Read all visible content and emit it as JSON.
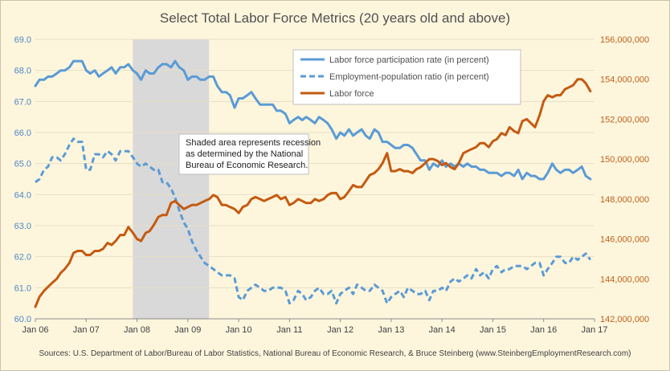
{
  "chart_data": {
    "type": "line",
    "title": "Select Total Labor Force Metrics (20 years old and above)",
    "source": "Sources: U.S. Department of Labor/Bureau of Labor Statistics, National Bureau of Economic Research,  & Bruce Steinberg (www.SteinbergEmploymentResearch.com)",
    "annotation": "Shaded area represents recession as determined by the National Bureau of Economic Research.",
    "annotation_lines": [
      "Shaded area represents recession",
      "as determined by the National",
      "Bureau of Economic Research."
    ],
    "recession": {
      "start": "Dec 2007",
      "end": "Jun 2009",
      "start_x": 2007.917,
      "end_x": 2009.417
    },
    "x_axis": {
      "range": [
        2006,
        2017
      ],
      "tick_labels": [
        "Jan 06",
        "Jan 07",
        "Jan 08",
        "Jan 09",
        "Jan 10",
        "Jan 11",
        "Jan 12",
        "Jan 13",
        "Jan 14",
        "Jan 15",
        "Jan 16",
        "Jan 17"
      ],
      "tick_values": [
        2006,
        2007,
        2008,
        2009,
        2010,
        2011,
        2012,
        2013,
        2014,
        2015,
        2016,
        2017
      ]
    },
    "y_left": {
      "range": [
        60.0,
        69.0
      ],
      "tick_labels": [
        "60.0",
        "61.0",
        "62.0",
        "63.0",
        "64.0",
        "65.0",
        "66.0",
        "67.0",
        "68.0",
        "69.0"
      ],
      "tick_values": [
        60,
        61,
        62,
        63,
        64,
        65,
        66,
        67,
        68,
        69
      ]
    },
    "y_right": {
      "range": [
        142000000,
        156000000
      ],
      "tick_labels": [
        "142,000,000",
        "144,000,000",
        "146,000,000",
        "148,000,000",
        "150,000,000",
        "152,000,000",
        "154,000,000",
        "156,000,000"
      ],
      "tick_values": [
        142000000,
        144000000,
        146000000,
        148000000,
        150000000,
        152000000,
        154000000,
        156000000
      ]
    },
    "legend_position": "top-right",
    "colors": {
      "participation": "#5b9bd5",
      "employment": "#5b9bd5",
      "labor_force": "#c55a11",
      "recession": "#d9d9d9"
    },
    "series": [
      {
        "name": "Labor force participation rate (in percent)",
        "axis": "left",
        "style": "solid",
        "x": [
          2006.0,
          2006.08,
          2006.17,
          2006.25,
          2006.33,
          2006.42,
          2006.5,
          2006.58,
          2006.67,
          2006.75,
          2006.83,
          2006.92,
          2007.0,
          2007.08,
          2007.17,
          2007.25,
          2007.33,
          2007.42,
          2007.5,
          2007.58,
          2007.67,
          2007.75,
          2007.83,
          2007.92,
          2008.0,
          2008.08,
          2008.17,
          2008.25,
          2008.33,
          2008.42,
          2008.5,
          2008.58,
          2008.67,
          2008.75,
          2008.83,
          2008.92,
          2009.0,
          2009.08,
          2009.17,
          2009.25,
          2009.33,
          2009.42,
          2009.5,
          2009.58,
          2009.67,
          2009.75,
          2009.83,
          2009.92,
          2010.0,
          2010.08,
          2010.17,
          2010.25,
          2010.33,
          2010.42,
          2010.5,
          2010.58,
          2010.67,
          2010.75,
          2010.83,
          2010.92,
          2011.0,
          2011.08,
          2011.17,
          2011.25,
          2011.33,
          2011.42,
          2011.5,
          2011.58,
          2011.67,
          2011.75,
          2011.83,
          2011.92,
          2012.0,
          2012.08,
          2012.17,
          2012.25,
          2012.33,
          2012.42,
          2012.5,
          2012.58,
          2012.67,
          2012.75,
          2012.83,
          2012.92,
          2013.0,
          2013.08,
          2013.17,
          2013.25,
          2013.33,
          2013.42,
          2013.5,
          2013.58,
          2013.67,
          2013.75,
          2013.83,
          2013.92,
          2014.0,
          2014.08,
          2014.17,
          2014.25,
          2014.33,
          2014.42,
          2014.5,
          2014.58,
          2014.67,
          2014.75,
          2014.83,
          2014.92,
          2015.0,
          2015.08,
          2015.17,
          2015.25,
          2015.33,
          2015.42,
          2015.5,
          2015.58,
          2015.67,
          2015.75,
          2015.83,
          2015.92,
          2016.0,
          2016.08,
          2016.17,
          2016.25,
          2016.33,
          2016.42,
          2016.5,
          2016.58,
          2016.67,
          2016.75,
          2016.83,
          2016.92
        ],
        "y": [
          67.5,
          67.7,
          67.7,
          67.8,
          67.8,
          67.9,
          68.0,
          68.0,
          68.1,
          68.3,
          68.3,
          68.3,
          68.0,
          67.9,
          68.0,
          67.8,
          67.9,
          68.0,
          68.1,
          67.9,
          68.1,
          68.1,
          68.2,
          68.0,
          67.9,
          67.7,
          68.0,
          67.9,
          67.9,
          68.1,
          68.2,
          68.2,
          68.1,
          68.3,
          68.1,
          68.0,
          67.7,
          67.8,
          67.8,
          67.7,
          67.7,
          67.8,
          67.8,
          67.5,
          67.3,
          67.3,
          67.2,
          66.8,
          67.1,
          67.1,
          67.2,
          67.3,
          67.1,
          66.9,
          66.9,
          66.9,
          66.9,
          66.7,
          66.7,
          66.6,
          66.3,
          66.4,
          66.5,
          66.4,
          66.5,
          66.4,
          66.3,
          66.5,
          66.4,
          66.3,
          66.1,
          65.8,
          66.0,
          65.9,
          66.1,
          65.9,
          66.0,
          66.1,
          65.9,
          65.8,
          66.1,
          66.0,
          65.7,
          65.7,
          65.6,
          65.5,
          65.5,
          65.6,
          65.6,
          65.5,
          65.3,
          65.1,
          65.1,
          64.8,
          65.0,
          64.9,
          65.1,
          64.9,
          65.0,
          64.9,
          65.0,
          64.9,
          65.0,
          64.9,
          64.9,
          64.8,
          64.8,
          64.7,
          64.7,
          64.7,
          64.6,
          64.7,
          64.7,
          64.6,
          64.8,
          64.5,
          64.7,
          64.6,
          64.6,
          64.5,
          64.5,
          64.7,
          65.0,
          64.8,
          64.7,
          64.8,
          64.8,
          64.7,
          64.8,
          64.9,
          64.6,
          64.5
        ]
      },
      {
        "name": "Employment-population ratio (in percent)",
        "axis": "left",
        "style": "dashed",
        "x": [
          2006.0,
          2006.08,
          2006.17,
          2006.25,
          2006.33,
          2006.42,
          2006.5,
          2006.58,
          2006.67,
          2006.75,
          2006.83,
          2006.92,
          2007.0,
          2007.08,
          2007.17,
          2007.25,
          2007.33,
          2007.42,
          2007.5,
          2007.58,
          2007.67,
          2007.75,
          2007.83,
          2007.92,
          2008.0,
          2008.08,
          2008.17,
          2008.25,
          2008.33,
          2008.42,
          2008.5,
          2008.58,
          2008.67,
          2008.75,
          2008.83,
          2008.92,
          2009.0,
          2009.08,
          2009.17,
          2009.25,
          2009.33,
          2009.42,
          2009.5,
          2009.58,
          2009.67,
          2009.75,
          2009.83,
          2009.92,
          2010.0,
          2010.08,
          2010.17,
          2010.25,
          2010.33,
          2010.42,
          2010.5,
          2010.58,
          2010.67,
          2010.75,
          2010.83,
          2010.92,
          2011.0,
          2011.08,
          2011.17,
          2011.25,
          2011.33,
          2011.42,
          2011.5,
          2011.58,
          2011.67,
          2011.75,
          2011.83,
          2011.92,
          2012.0,
          2012.08,
          2012.17,
          2012.25,
          2012.33,
          2012.42,
          2012.5,
          2012.58,
          2012.67,
          2012.75,
          2012.83,
          2012.92,
          2013.0,
          2013.08,
          2013.17,
          2013.25,
          2013.33,
          2013.42,
          2013.5,
          2013.58,
          2013.67,
          2013.75,
          2013.83,
          2013.92,
          2014.0,
          2014.08,
          2014.17,
          2014.25,
          2014.33,
          2014.42,
          2014.5,
          2014.58,
          2014.67,
          2014.75,
          2014.83,
          2014.92,
          2015.0,
          2015.08,
          2015.17,
          2015.25,
          2015.33,
          2015.42,
          2015.5,
          2015.58,
          2015.67,
          2015.75,
          2015.83,
          2015.92,
          2016.0,
          2016.08,
          2016.17,
          2016.25,
          2016.33,
          2016.42,
          2016.5,
          2016.58,
          2016.67,
          2016.75,
          2016.83,
          2016.92
        ],
        "y": [
          64.4,
          64.5,
          64.8,
          64.9,
          65.2,
          65.2,
          65.1,
          65.3,
          65.6,
          65.8,
          65.7,
          65.7,
          64.8,
          64.8,
          65.3,
          65.3,
          65.2,
          65.4,
          65.3,
          65.1,
          65.4,
          65.4,
          65.4,
          65.2,
          65.0,
          64.9,
          65.0,
          64.9,
          64.8,
          64.8,
          64.4,
          64.4,
          64.2,
          63.9,
          63.5,
          63.1,
          62.9,
          62.5,
          62.2,
          62.0,
          61.8,
          61.7,
          61.6,
          61.5,
          61.4,
          61.4,
          61.4,
          61.3,
          60.7,
          60.6,
          60.9,
          61.0,
          61.1,
          61.0,
          60.9,
          60.9,
          61.0,
          61.0,
          61.0,
          60.9,
          60.5,
          60.6,
          60.9,
          60.8,
          60.6,
          60.7,
          60.9,
          61.0,
          60.8,
          60.8,
          60.9,
          60.5,
          60.8,
          60.9,
          61.0,
          60.8,
          61.1,
          61.0,
          60.9,
          60.9,
          61.1,
          61.0,
          60.9,
          60.5,
          60.7,
          60.8,
          60.9,
          60.7,
          61.0,
          60.9,
          60.8,
          60.8,
          60.9,
          60.6,
          60.9,
          60.9,
          61.0,
          60.9,
          61.2,
          61.3,
          61.2,
          61.3,
          61.4,
          61.3,
          61.6,
          61.4,
          61.5,
          61.3,
          61.6,
          61.7,
          61.5,
          61.6,
          61.6,
          61.7,
          61.7,
          61.7,
          61.6,
          61.7,
          61.8,
          61.8,
          61.4,
          61.6,
          61.8,
          62.0,
          62.0,
          61.8,
          61.8,
          62.0,
          61.9,
          62.0,
          62.1,
          61.9
        ]
      },
      {
        "name": "Labor force",
        "axis": "right",
        "style": "solid",
        "x": [
          2006.0,
          2006.08,
          2006.17,
          2006.25,
          2006.33,
          2006.42,
          2006.5,
          2006.58,
          2006.67,
          2006.75,
          2006.83,
          2006.92,
          2007.0,
          2007.08,
          2007.17,
          2007.25,
          2007.33,
          2007.42,
          2007.5,
          2007.58,
          2007.67,
          2007.75,
          2007.83,
          2007.92,
          2008.0,
          2008.08,
          2008.17,
          2008.25,
          2008.33,
          2008.42,
          2008.5,
          2008.58,
          2008.67,
          2008.75,
          2008.83,
          2008.92,
          2009.0,
          2009.08,
          2009.17,
          2009.25,
          2009.33,
          2009.42,
          2009.5,
          2009.58,
          2009.67,
          2009.75,
          2009.83,
          2009.92,
          2010.0,
          2010.08,
          2010.17,
          2010.25,
          2010.33,
          2010.42,
          2010.5,
          2010.58,
          2010.67,
          2010.75,
          2010.83,
          2010.92,
          2011.0,
          2011.08,
          2011.17,
          2011.25,
          2011.33,
          2011.42,
          2011.5,
          2011.58,
          2011.67,
          2011.75,
          2011.83,
          2011.92,
          2012.0,
          2012.08,
          2012.17,
          2012.25,
          2012.33,
          2012.42,
          2012.5,
          2012.58,
          2012.67,
          2012.75,
          2012.83,
          2012.92,
          2013.0,
          2013.08,
          2013.17,
          2013.25,
          2013.33,
          2013.42,
          2013.5,
          2013.58,
          2013.67,
          2013.75,
          2013.83,
          2013.92,
          2014.0,
          2014.08,
          2014.17,
          2014.25,
          2014.33,
          2014.42,
          2014.5,
          2014.58,
          2014.67,
          2014.75,
          2014.83,
          2014.92,
          2015.0,
          2015.08,
          2015.17,
          2015.25,
          2015.33,
          2015.42,
          2015.5,
          2015.58,
          2015.67,
          2015.75,
          2015.83,
          2015.92,
          2016.0,
          2016.08,
          2016.17,
          2016.25,
          2016.33,
          2016.42,
          2016.5,
          2016.58,
          2016.67,
          2016.75,
          2016.83,
          2016.92
        ],
        "y": [
          142600000,
          143100000,
          143400000,
          143600000,
          143800000,
          144000000,
          144300000,
          144500000,
          144800000,
          145300000,
          145400000,
          145400000,
          145200000,
          145200000,
          145400000,
          145400000,
          145500000,
          145800000,
          145700000,
          145900000,
          146200000,
          146200000,
          146600000,
          146300000,
          146000000,
          145900000,
          146300000,
          146400000,
          146700000,
          147100000,
          147200000,
          147200000,
          147800000,
          147900000,
          147700000,
          147500000,
          147600000,
          147700000,
          147700000,
          147800000,
          147900000,
          148000000,
          148200000,
          148100000,
          147700000,
          147700000,
          147600000,
          147500000,
          147300000,
          147600000,
          147700000,
          148000000,
          148100000,
          148000000,
          147900000,
          148000000,
          148100000,
          148200000,
          148000000,
          148100000,
          147700000,
          147800000,
          148000000,
          147900000,
          147800000,
          147800000,
          148000000,
          147900000,
          148000000,
          148200000,
          148300000,
          148300000,
          148000000,
          148100000,
          148400000,
          148700000,
          148600000,
          148600000,
          148900000,
          149200000,
          149300000,
          149500000,
          149800000,
          150300000,
          149400000,
          149400000,
          149500000,
          149400000,
          149400000,
          149300000,
          149500000,
          149600000,
          149800000,
          150000000,
          150000000,
          149900000,
          149700000,
          149800000,
          149600000,
          149500000,
          149800000,
          150300000,
          150400000,
          150500000,
          150600000,
          150800000,
          150800000,
          150600000,
          150900000,
          151000000,
          151300000,
          151200000,
          151600000,
          151400000,
          151300000,
          151900000,
          152000000,
          151800000,
          151600000,
          152200000,
          152900000,
          153200000,
          153100000,
          153200000,
          153200000,
          153500000,
          153600000,
          153700000,
          154000000,
          154000000,
          153800000,
          153400000
        ]
      }
    ]
  }
}
